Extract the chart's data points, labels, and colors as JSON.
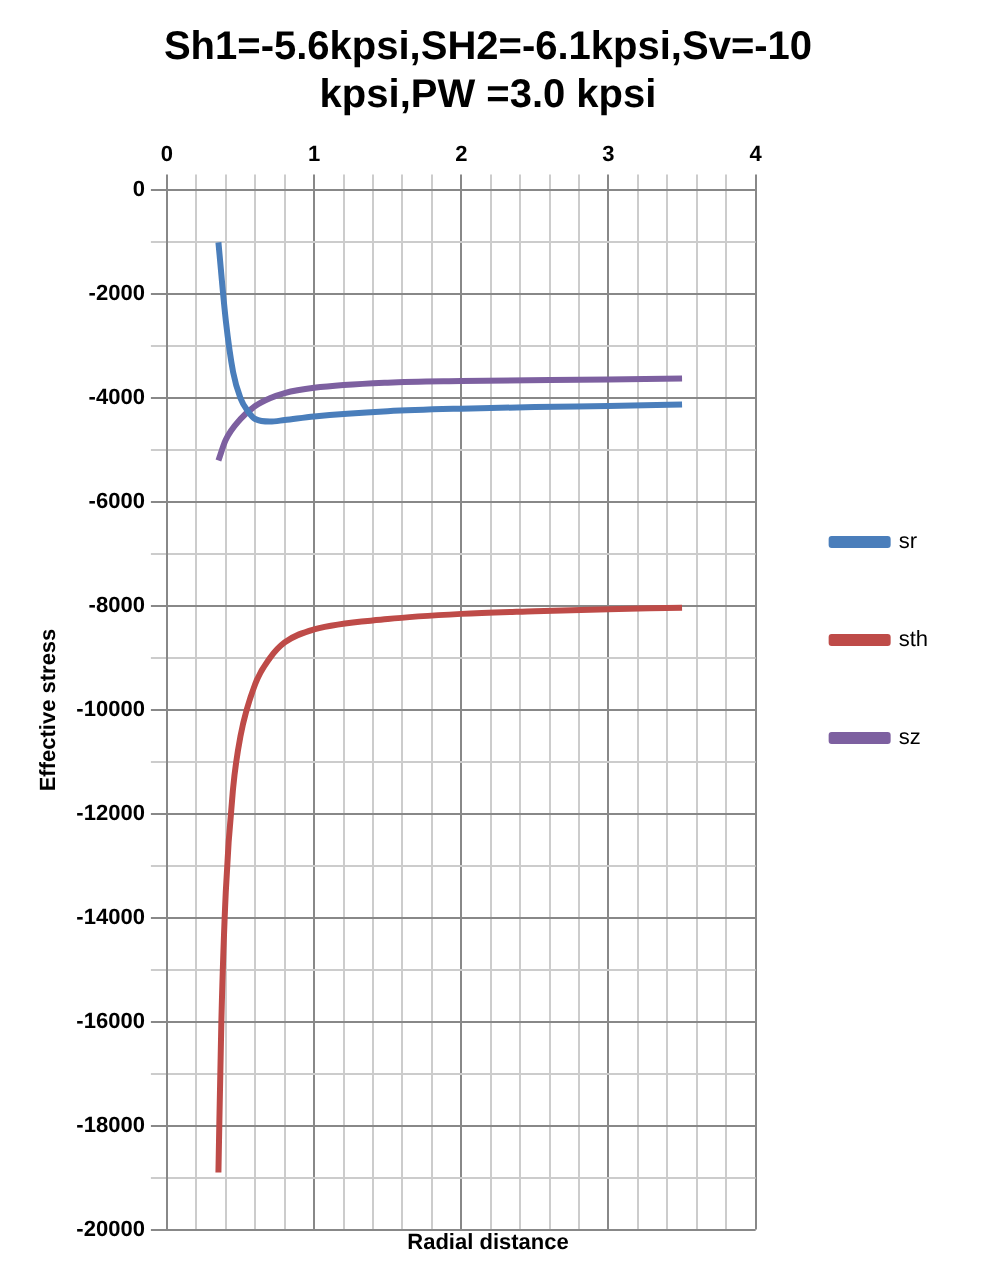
{
  "chart_data": {
    "type": "line",
    "title": "Sh1=-5.6kpsi,SH2=-6.1kpsi,Sv=-10kpsi,PW =3.0 kpsi",
    "xlabel": "Radial distance",
    "ylabel": "Effective stress",
    "series": [
      {
        "name": "sr",
        "color": "#4a7ebb",
        "x": [
          0.35,
          0.4,
          0.45,
          0.5,
          0.55,
          0.6,
          0.7,
          0.8,
          1,
          1.5,
          2,
          2.5,
          3,
          3.5
        ],
        "values": [
          -1000,
          -2500,
          -3500,
          -4000,
          -4250,
          -4400,
          -4450,
          -4420,
          -4350,
          -4250,
          -4200,
          -4170,
          -4150,
          -4120
        ]
      },
      {
        "name": "sth",
        "color": "#be4b48",
        "x": [
          0.35,
          0.37,
          0.4,
          0.45,
          0.5,
          0.6,
          0.7,
          0.8,
          1,
          1.5,
          2,
          2.5,
          3,
          3.5
        ],
        "values": [
          -18900,
          -16000,
          -13500,
          -11500,
          -10500,
          -9500,
          -9000,
          -8700,
          -8450,
          -8250,
          -8150,
          -8100,
          -8060,
          -8030
        ]
      },
      {
        "name": "sz",
        "color": "#7d60a0",
        "x": [
          0.35,
          0.4,
          0.5,
          0.6,
          0.7,
          0.8,
          1,
          1.5,
          2,
          3,
          3.5
        ],
        "values": [
          -5200,
          -4800,
          -4400,
          -4150,
          -4000,
          -3900,
          -3800,
          -3700,
          -3670,
          -3640,
          -3620
        ]
      }
    ],
    "xlim": [
      0,
      4
    ],
    "xticks": [
      0,
      {
        "value": 0.2,
        "label": null
      },
      {
        "value": 0.4,
        "label": null
      },
      {
        "value": 0.6,
        "label": null
      },
      {
        "value": 0.8,
        "label": null
      },
      1,
      {
        "value": 1.2,
        "label": null
      },
      {
        "value": 1.4,
        "label": null
      },
      {
        "value": 1.6,
        "label": null
      },
      {
        "value": 1.8,
        "label": null
      },
      2,
      {
        "value": 2.2,
        "label": null
      },
      {
        "value": 2.4,
        "label": null
      },
      {
        "value": 2.6,
        "label": null
      },
      {
        "value": 2.8,
        "label": null
      },
      3,
      {
        "value": 3.2,
        "label": null
      },
      {
        "value": 3.4,
        "label": null
      },
      {
        "value": 3.6,
        "label": null
      },
      {
        "value": 3.8,
        "label": null
      },
      4
    ],
    "ylim": [
      -20000,
      0
    ],
    "yticks": [
      -20000,
      {
        "value": -19000,
        "label": null
      },
      -18000,
      {
        "value": -17000,
        "label": null
      },
      -16000,
      {
        "value": -15000,
        "label": null
      },
      -14000,
      {
        "value": -13000,
        "label": null
      },
      -12000,
      {
        "value": -11000,
        "label": null
      },
      -10000,
      {
        "value": -9000,
        "label": null
      },
      -8000,
      {
        "value": -7000,
        "label": null
      },
      -6000,
      {
        "value": -5000,
        "label": null
      },
      -4000,
      {
        "value": -3000,
        "label": null
      },
      -2000,
      {
        "value": -1000,
        "label": null
      },
      0
    ],
    "grid": true,
    "legend": "right",
    "marker": "none",
    "line_style": "solid"
  }
}
